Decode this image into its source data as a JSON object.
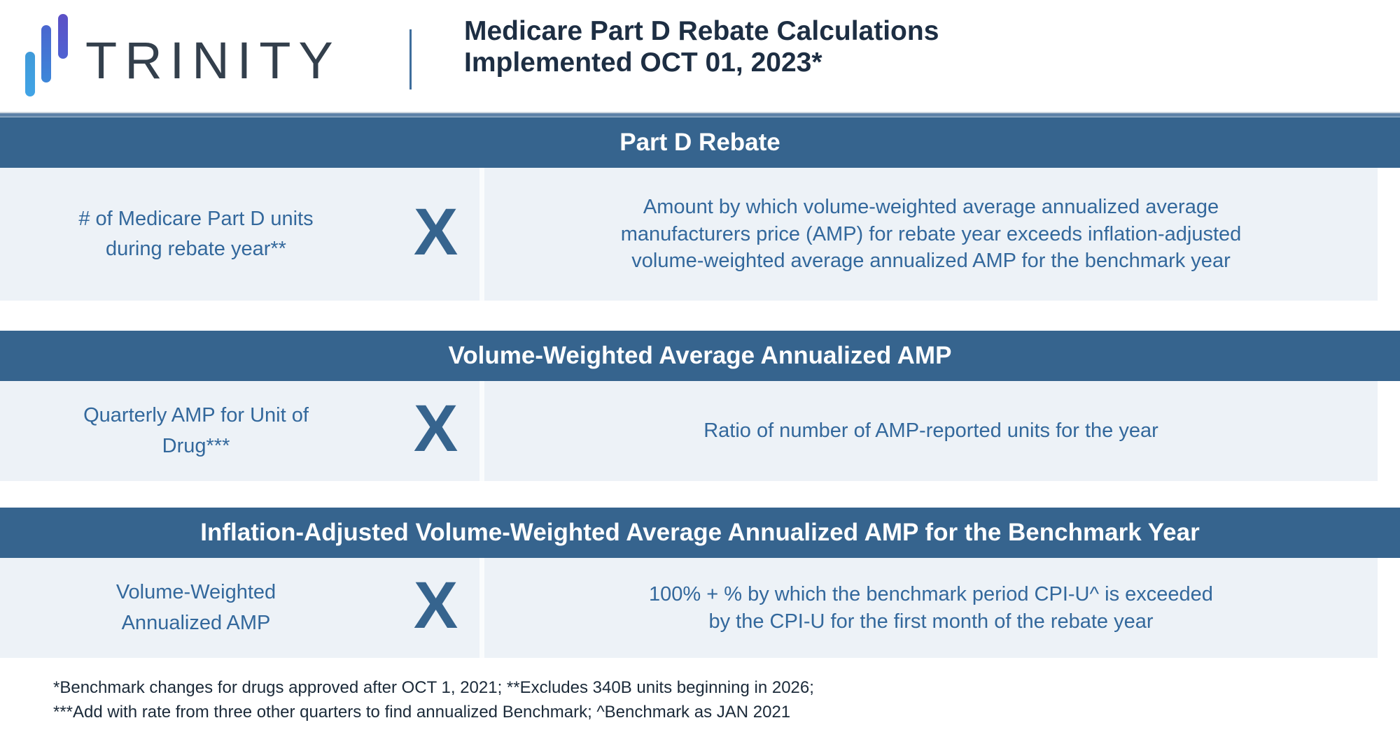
{
  "header": {
    "brand": "TRINITY",
    "title_line1": "Medicare Part D Rebate Calculations",
    "title_line2": "Implemented OCT 01, 2023*"
  },
  "sections": [
    {
      "banner": "Part D Rebate",
      "left_lines": [
        "# of Medicare Part D units",
        "during rebate year**"
      ],
      "operator": "X",
      "right_lines": [
        "Amount by which volume-weighted average annualized average",
        "manufacturers price (AMP) for rebate year exceeds inflation-adjusted",
        "volume-weighted average annualized AMP for the benchmark year"
      ]
    },
    {
      "banner": "Volume-Weighted Average Annualized AMP",
      "left_lines": [
        "Quarterly AMP for Unit of",
        "Drug***"
      ],
      "operator": "X",
      "right_lines": [
        "Ratio of number of AMP-reported units for the year"
      ]
    },
    {
      "banner": "Inflation-Adjusted Volume-Weighted Average Annualized AMP for the Benchmark Year",
      "left_lines": [
        "Volume-Weighted",
        "Annualized AMP"
      ],
      "operator": "X",
      "right_lines": [
        "100% + % by which the benchmark period CPI-U^ is exceeded",
        "by the CPI-U for the first month of the rebate year"
      ]
    }
  ],
  "footnotes": {
    "line1": "*Benchmark changes for drugs approved after OCT 1, 2021; **Excludes 340B units beginning in 2026;",
    "line2": "***Add with rate from three other quarters to find annualized Benchmark; ^Benchmark as JAN 2021"
  },
  "colors": {
    "banner_bg": "#36648E",
    "row_bg": "#EDF2F7",
    "body_text": "#33689C",
    "title_text": "#1D2E43",
    "brand_text": "#333F4C",
    "footnote_text": "#1B2A39",
    "logo_bar_light_blue": "#41A4E6",
    "logo_bar_blue": "#3D87D9",
    "logo_bar_indigo": "#5C50C6"
  }
}
